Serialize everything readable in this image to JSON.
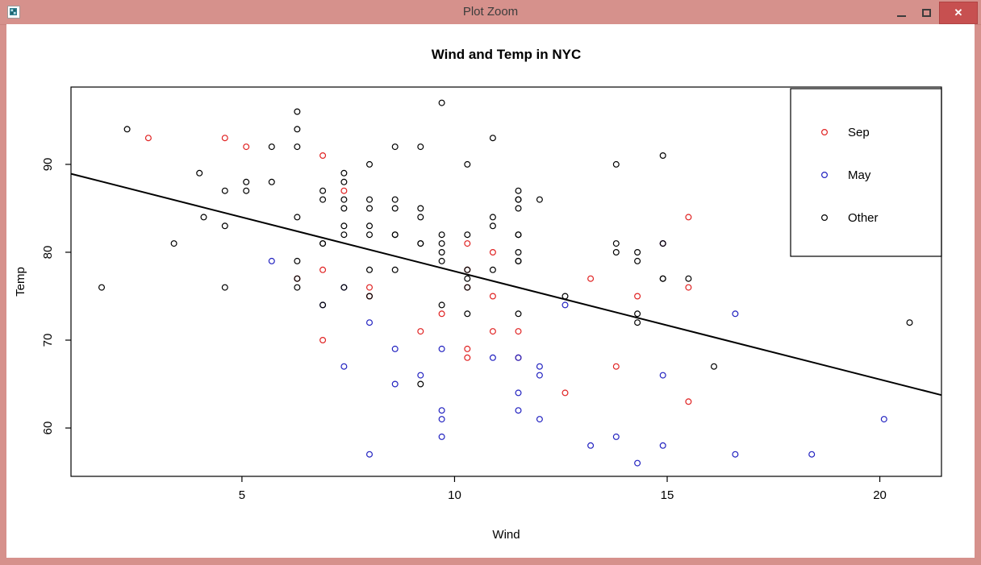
{
  "window": {
    "title": "Plot Zoom",
    "close_glyph": "✕",
    "colors": {
      "frame": "#d6918c",
      "title_text": "#3c3c3c",
      "close_button_bg": "#c75050",
      "content_bg": "#ffffff"
    }
  },
  "chart_data": {
    "type": "scatter",
    "title": "Wind and Temp in NYC",
    "xlabel": "Wind",
    "ylabel": "Temp",
    "xlim": [
      0.98,
      21.45
    ],
    "ylim": [
      54.5,
      98.8
    ],
    "xticks": [
      5,
      10,
      15,
      20
    ],
    "yticks": [
      60,
      70,
      80,
      90
    ],
    "grid": false,
    "marker": "open-circle",
    "legend": {
      "position": "topright",
      "entries": [
        {
          "label": "Sep",
          "color": "#e02222"
        },
        {
          "label": "May",
          "color": "#2222c0"
        },
        {
          "label": "Other",
          "color": "#000000"
        }
      ]
    },
    "regression_line": {
      "slope": -1.2305,
      "intercept": 90.1349,
      "color": "#000000",
      "width": 2
    },
    "series": [
      {
        "name": "Sep",
        "color": "#e02222",
        "points": [
          [
            6.9,
            91
          ],
          [
            5.1,
            92
          ],
          [
            2.8,
            93
          ],
          [
            4.6,
            93
          ],
          [
            7.4,
            87
          ],
          [
            15.5,
            84
          ],
          [
            10.9,
            80
          ],
          [
            10.3,
            78
          ],
          [
            10.9,
            75
          ],
          [
            9.7,
            73
          ],
          [
            14.9,
            81
          ],
          [
            15.5,
            76
          ],
          [
            6.3,
            77
          ],
          [
            10.9,
            71
          ],
          [
            11.5,
            71
          ],
          [
            6.9,
            78
          ],
          [
            13.8,
            67
          ],
          [
            10.3,
            76
          ],
          [
            10.3,
            68
          ],
          [
            8.0,
            75
          ],
          [
            12.6,
            64
          ],
          [
            9.2,
            71
          ],
          [
            10.3,
            81
          ],
          [
            10.3,
            69
          ],
          [
            15.5,
            63
          ],
          [
            6.9,
            70
          ],
          [
            13.2,
            77
          ],
          [
            14.3,
            75
          ],
          [
            8.0,
            76
          ],
          [
            11.5,
            68
          ]
        ]
      },
      {
        "name": "May",
        "color": "#2222c0",
        "points": [
          [
            7.4,
            67
          ],
          [
            8.0,
            72
          ],
          [
            12.6,
            74
          ],
          [
            11.5,
            62
          ],
          [
            14.3,
            56
          ],
          [
            14.9,
            66
          ],
          [
            8.6,
            65
          ],
          [
            13.8,
            59
          ],
          [
            20.1,
            61
          ],
          [
            8.6,
            69
          ],
          [
            6.9,
            74
          ],
          [
            9.7,
            69
          ],
          [
            9.2,
            66
          ],
          [
            10.9,
            68
          ],
          [
            13.2,
            58
          ],
          [
            11.5,
            64
          ],
          [
            12.0,
            66
          ],
          [
            18.4,
            57
          ],
          [
            11.5,
            68
          ],
          [
            9.7,
            62
          ],
          [
            9.7,
            59
          ],
          [
            16.6,
            73
          ],
          [
            9.7,
            61
          ],
          [
            12.0,
            61
          ],
          [
            16.6,
            57
          ],
          [
            14.9,
            58
          ],
          [
            8.0,
            57
          ],
          [
            12.0,
            67
          ],
          [
            14.9,
            81
          ],
          [
            5.7,
            79
          ],
          [
            7.4,
            76
          ]
        ]
      },
      {
        "name": "Other",
        "color": "#000000",
        "points": [
          [
            8.6,
            78
          ],
          [
            9.7,
            74
          ],
          [
            16.1,
            67
          ],
          [
            9.2,
            84
          ],
          [
            8.6,
            85
          ],
          [
            14.3,
            79
          ],
          [
            9.7,
            82
          ],
          [
            6.9,
            87
          ],
          [
            13.8,
            90
          ],
          [
            11.5,
            87
          ],
          [
            10.9,
            93
          ],
          [
            9.2,
            92
          ],
          [
            8.0,
            82
          ],
          [
            13.8,
            80
          ],
          [
            11.5,
            79
          ],
          [
            14.9,
            77
          ],
          [
            20.7,
            72
          ],
          [
            9.2,
            65
          ],
          [
            11.5,
            73
          ],
          [
            10.3,
            76
          ],
          [
            6.3,
            77
          ],
          [
            1.7,
            76
          ],
          [
            4.6,
            76
          ],
          [
            6.3,
            76
          ],
          [
            8.0,
            75
          ],
          [
            8.0,
            78
          ],
          [
            10.3,
            73
          ],
          [
            11.5,
            80
          ],
          [
            14.9,
            77
          ],
          [
            8.0,
            83
          ],
          [
            4.1,
            84
          ],
          [
            9.2,
            85
          ],
          [
            9.2,
            81
          ],
          [
            10.9,
            84
          ],
          [
            4.6,
            83
          ],
          [
            10.9,
            83
          ],
          [
            5.1,
            88
          ],
          [
            6.3,
            92
          ],
          [
            5.7,
            92
          ],
          [
            7.4,
            89
          ],
          [
            8.6,
            82
          ],
          [
            14.3,
            73
          ],
          [
            14.9,
            81
          ],
          [
            14.9,
            91
          ],
          [
            14.3,
            80
          ],
          [
            6.9,
            81
          ],
          [
            10.3,
            82
          ],
          [
            6.3,
            84
          ],
          [
            5.1,
            87
          ],
          [
            11.5,
            85
          ],
          [
            6.9,
            74
          ],
          [
            9.7,
            81
          ],
          [
            11.5,
            82
          ],
          [
            8.6,
            86
          ],
          [
            8.0,
            85
          ],
          [
            8.6,
            82
          ],
          [
            12.0,
            86
          ],
          [
            7.4,
            88
          ],
          [
            7.4,
            86
          ],
          [
            7.4,
            83
          ],
          [
            9.2,
            81
          ],
          [
            6.9,
            81
          ],
          [
            13.8,
            81
          ],
          [
            7.4,
            82
          ],
          [
            6.9,
            86
          ],
          [
            7.4,
            85
          ],
          [
            4.6,
            87
          ],
          [
            4.0,
            89
          ],
          [
            10.3,
            90
          ],
          [
            8.0,
            90
          ],
          [
            8.6,
            92
          ],
          [
            11.5,
            86
          ],
          [
            11.5,
            86
          ],
          [
            11.5,
            82
          ],
          [
            9.7,
            80
          ],
          [
            11.5,
            79
          ],
          [
            10.3,
            77
          ],
          [
            6.3,
            79
          ],
          [
            7.4,
            76
          ],
          [
            10.9,
            78
          ],
          [
            10.3,
            78
          ],
          [
            15.5,
            77
          ],
          [
            14.3,
            72
          ],
          [
            12.6,
            75
          ],
          [
            9.7,
            79
          ],
          [
            3.4,
            81
          ],
          [
            8.0,
            86
          ],
          [
            5.7,
            88
          ],
          [
            9.7,
            97
          ],
          [
            2.3,
            94
          ],
          [
            6.3,
            96
          ],
          [
            6.3,
            94
          ]
        ]
      }
    ]
  }
}
